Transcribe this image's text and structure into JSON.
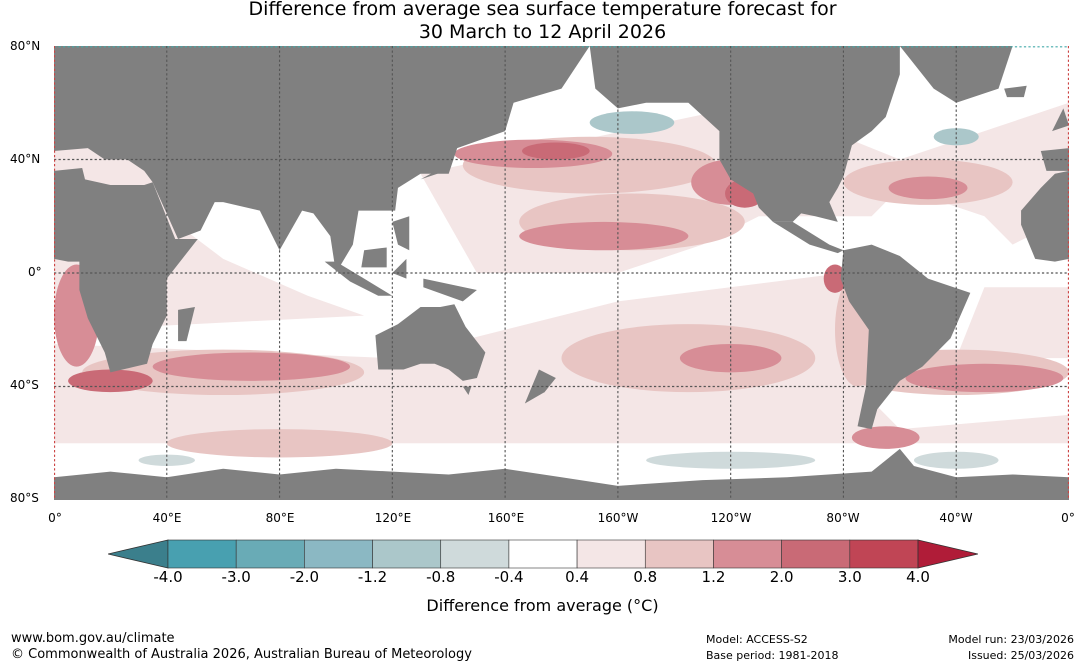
{
  "title": {
    "line1": "Difference from average sea surface temperature forecast for",
    "line2": "30 March to 12 April 2026"
  },
  "lat_labels": [
    "80°N",
    "40°N",
    "0°",
    "40°S",
    "80°S"
  ],
  "lon_labels": [
    "0°",
    "40°E",
    "80°E",
    "120°E",
    "160°E",
    "160°W",
    "120°W",
    "80°W",
    "40°W",
    "0°"
  ],
  "colorbar": {
    "ticks": [
      "-4.0",
      "-3.0",
      "-2.0",
      "-1.2",
      "-0.8",
      "-0.4",
      "0.4",
      "0.8",
      "1.2",
      "2.0",
      "3.0",
      "4.0"
    ],
    "colors": [
      "#3b7f8c",
      "#48a0b0",
      "#69abb6",
      "#8bb8c3",
      "#abc7ca",
      "#cfdadb",
      "#ffffff",
      "#f4e6e6",
      "#e8c5c3",
      "#d78d96",
      "#c96a76",
      "#c04555",
      "#b01c38"
    ],
    "label": "Difference from average (°C)"
  },
  "colors": {
    "land": "#808080",
    "grid": "#555555"
  },
  "footer": {
    "url": "www.bom.gov.au/climate",
    "copyright": "© Commonwealth of Australia 2026, Australian Bureau of Meteorology",
    "model": "Model: ACCESS-S2",
    "base_period": "Base period: 1981-2018",
    "model_run": "Model run: 23/03/2026",
    "issued": "Issued: 25/03/2026"
  }
}
